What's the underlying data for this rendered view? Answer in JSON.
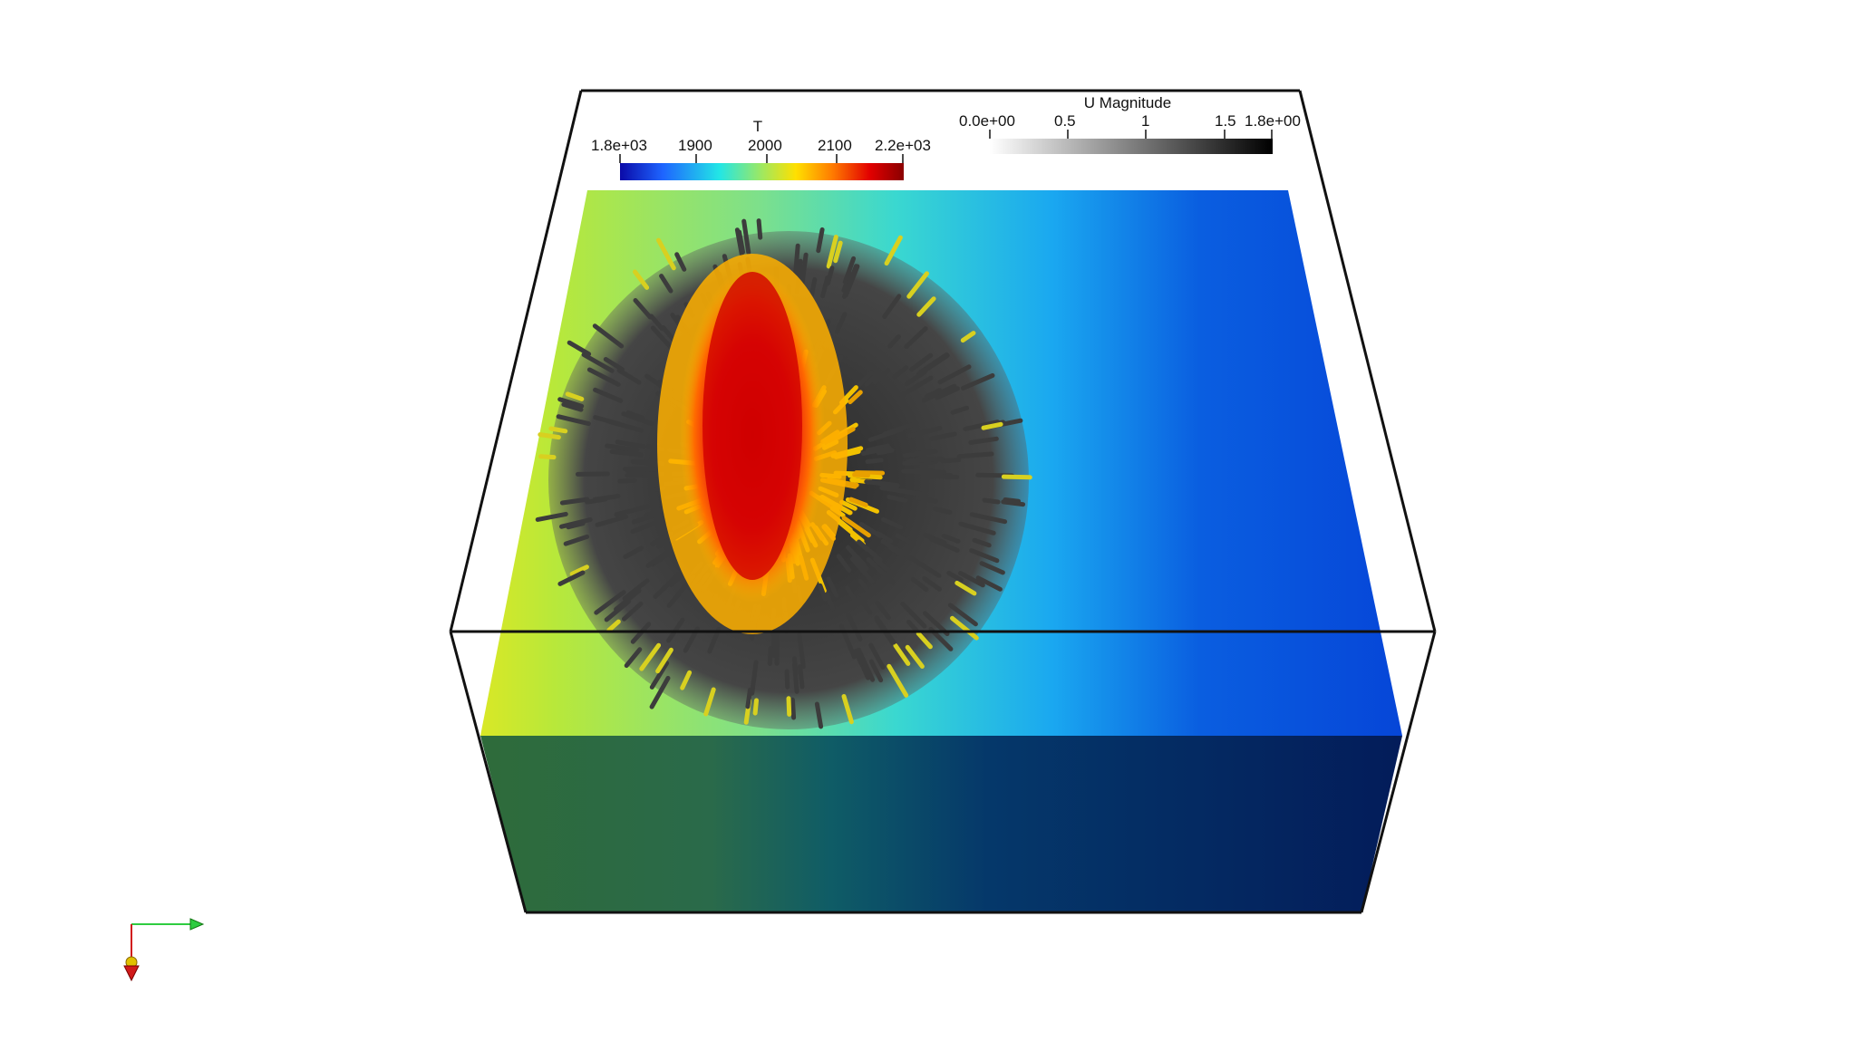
{
  "scene": {
    "description_tag": "paraview-render-view",
    "background": "#ffffff",
    "surface_field": "T",
    "glyph_field": "U Magnitude"
  },
  "colorbars": {
    "temperature": {
      "title": "T",
      "ticks": [
        "1.8e+03",
        "1900",
        "2000",
        "2100",
        "2.2e+03"
      ],
      "colormap": [
        "#0a0aa8",
        "#1e64ff",
        "#22e6e6",
        "#9fe860",
        "#ffe000",
        "#ff7a00",
        "#e20000",
        "#8a0000"
      ]
    },
    "velocity": {
      "title": "U Magnitude",
      "ticks": [
        "0.0e+00",
        "0.5",
        "1",
        "1.5",
        "1.8e+00"
      ],
      "colormap": [
        "#ffffff",
        "#000000"
      ]
    }
  },
  "axes": {
    "x_axis_color": "#2ecc40",
    "y_axis_color": "#d11a1a",
    "z_axis_color": "#e0c000"
  }
}
